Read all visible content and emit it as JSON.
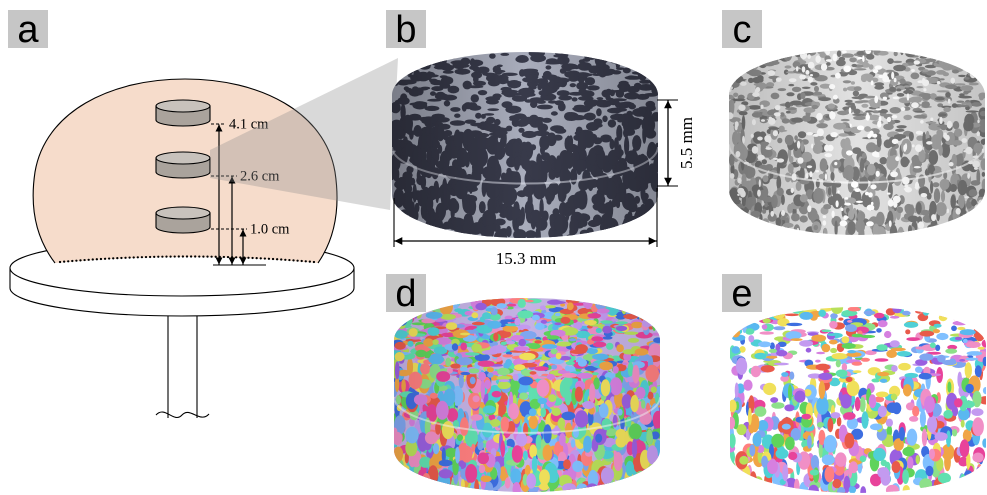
{
  "figure": {
    "panel_labels": {
      "a": "a",
      "b": "b",
      "c": "c",
      "d": "d",
      "e": "e"
    },
    "panel_a": {
      "sample_heights": [
        "4.1 cm",
        "2.6 cm",
        "1.0 cm"
      ]
    },
    "panel_b": {
      "height_label": "5.5 mm",
      "diameter_label": "15.3 mm"
    }
  },
  "colors": {
    "label_box": "#c6c6c6",
    "dome": "#f6dccb",
    "sample_side": "#aaa39c",
    "sample_top": "#c8c2bc",
    "microct_matrix": "#a9adbc",
    "microct_pores": "#383a4a",
    "foam_matrix": "#e2e2e2",
    "foam_pores": [
      "#8f8f8f",
      "#a6a6a6",
      "#767676"
    ],
    "segment_palette": [
      "#e8439a",
      "#f08fc6",
      "#5fd35b",
      "#8de08a",
      "#3d6ee0",
      "#7fa6f0",
      "#9a5fe0",
      "#c39af0",
      "#4fd0d6",
      "#f0a545",
      "#e85a4a",
      "#f0e05a",
      "#b8e05a",
      "#5ab8f0",
      "#d680e0",
      "#60e0b0",
      "#ff7f7f",
      "#80c0ff"
    ]
  }
}
